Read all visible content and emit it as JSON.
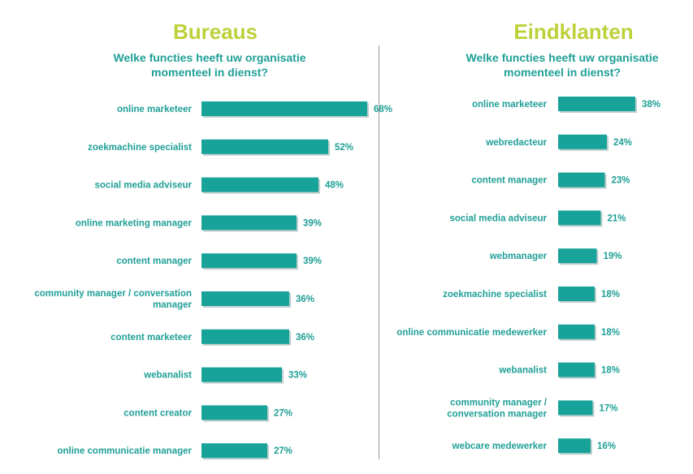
{
  "colors": {
    "title": "#bdd13a",
    "text": "#1f9f96",
    "bar": "#17a39a",
    "bar_shadow": "#8fa9a6",
    "divider": "#9a9a9a"
  },
  "chart_data": [
    {
      "type": "bar",
      "orientation": "horizontal",
      "title": "Bureaus",
      "subtitle": "Welke functies heeft uw organisatie momenteel in dienst?",
      "categories": [
        "online marketeer",
        "zoekmachine specialist",
        "social media adviseur",
        "online marketing manager",
        "content manager",
        "community manager / conversation manager",
        "content marketeer",
        "webanalist",
        "content creator",
        "online communicatie manager"
      ],
      "values": [
        68,
        52,
        48,
        39,
        39,
        36,
        36,
        33,
        27,
        27
      ],
      "value_labels": [
        "68%",
        "52%",
        "48%",
        "39%",
        "39%",
        "36%",
        "36%",
        "33%",
        "27%",
        "27%"
      ],
      "unit": "%",
      "xlim": [
        0,
        100
      ],
      "grid": false,
      "legend": "none"
    },
    {
      "type": "bar",
      "orientation": "horizontal",
      "title": "Eindklanten",
      "subtitle": "Welke functies heeft uw organisatie momenteel in dienst?",
      "categories": [
        "online marketeer",
        "webredacteur",
        "content manager",
        "social media adviseur",
        "webmanager",
        "zoekmachine specialist",
        "online communicatie medewerker",
        "webanalist",
        "community manager / conversation manager",
        "webcare medewerker"
      ],
      "values": [
        38,
        24,
        23,
        21,
        19,
        18,
        18,
        18,
        17,
        16
      ],
      "value_labels": [
        "38%",
        "24%",
        "23%",
        "21%",
        "19%",
        "18%",
        "18%",
        "18%",
        "17%",
        "16%"
      ],
      "unit": "%",
      "xlim": [
        0,
        40
      ],
      "grid": false,
      "legend": "none"
    }
  ]
}
